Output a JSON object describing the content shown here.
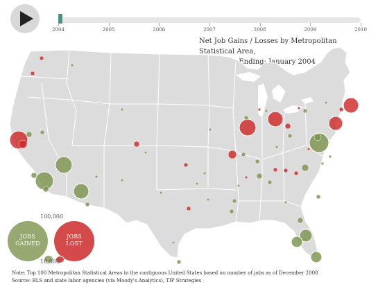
{
  "controls": {
    "play_icon": "play-icon"
  },
  "timeline": {
    "years": [
      "2004",
      "2005",
      "2006",
      "2007",
      "2008",
      "2009",
      "2010"
    ],
    "current_position": 0.0
  },
  "title": {
    "line1": "Net Job Gains / Losses by  Metropolitan Statistical Area,",
    "line2": "12 Months Ending:  January  2004"
  },
  "legend": {
    "scale_high": "100,000",
    "scale_low": "10,000",
    "gained_line1": "JOBS",
    "gained_line2": "GAINED",
    "lost_line1": "JOBS",
    "lost_line2": "LOST"
  },
  "colors": {
    "gained": "#7c944e",
    "lost": "#cd2a2a",
    "land": "#dcdcdc",
    "border": "#ffffff",
    "timeline_handle": "#4e8f86"
  },
  "footer": {
    "note": "Note: Top 100 Metropolitan Statistical Areas in the contiguous United States based on number of jobs as of December 2008",
    "source": "Source: BLS and state labor agencies (via Moody's Analytics), TIP Strategies"
  }
}
